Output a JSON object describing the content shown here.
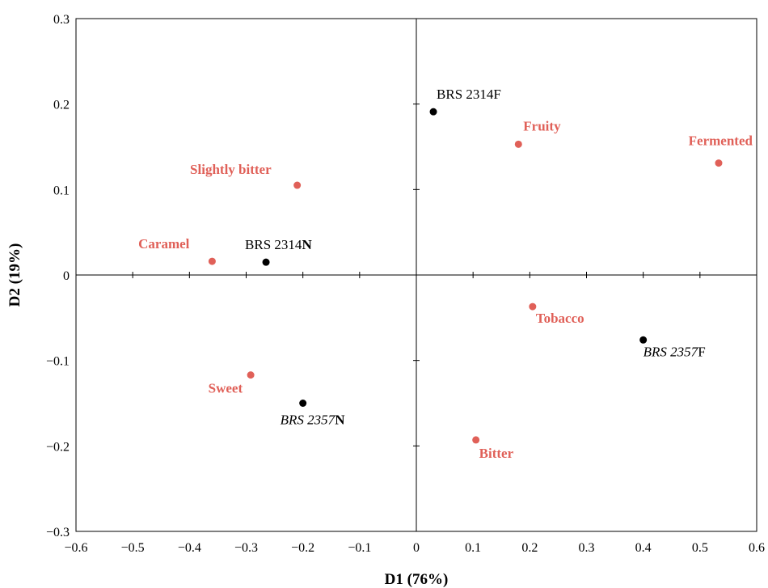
{
  "chart_data": {
    "type": "scatter",
    "xlabel": "D1 (76%)",
    "ylabel": "D2 (19%)",
    "xlim": [
      -0.6,
      0.6
    ],
    "ylim": [
      -0.3,
      0.3
    ],
    "x_ticks": [
      "−0.6",
      "−0.5",
      "−0.4",
      "−0.3",
      "−0.2",
      "−0.1",
      "0",
      "0.1",
      "0.2",
      "0.3",
      "0.4",
      "0.5",
      "0.6"
    ],
    "y_ticks": [
      "0.3",
      "0.2",
      "0.1",
      "0",
      "−0.1",
      "−0.2",
      "−0.3"
    ],
    "grid": false,
    "colors": {
      "attribute": "#e06058",
      "sample": "#000000"
    },
    "series": [
      {
        "points": [
          {
            "label": "Slightly bitter",
            "x": -0.21,
            "y": 0.105
          },
          {
            "label": "Caramel",
            "x": -0.36,
            "y": 0.016
          },
          {
            "label": "Fruity",
            "x": 0.18,
            "y": 0.153
          },
          {
            "label": "Fermented",
            "x": 0.533,
            "y": 0.131
          },
          {
            "label": "Tobacco",
            "x": 0.205,
            "y": -0.037
          },
          {
            "label": "Sweet",
            "x": -0.292,
            "y": -0.117
          },
          {
            "label": "Bitter",
            "x": 0.105,
            "y": -0.193
          }
        ]
      },
      {
        "points": [
          {
            "label_parts": [
              {
                "text": "BRS 2314F"
              }
            ],
            "x": 0.03,
            "y": 0.191
          },
          {
            "label_parts": [
              {
                "text": "BRS 2314"
              },
              {
                "text": "N",
                "bold": true
              }
            ],
            "x": -0.265,
            "y": 0.015
          },
          {
            "label_parts": [
              {
                "text": "BRS 2357",
                "italic": true
              },
              {
                "text": "F"
              }
            ],
            "x": 0.4,
            "y": -0.076
          },
          {
            "label_parts": [
              {
                "text": "BRS 2357",
                "italic": true
              },
              {
                "text": "N",
                "bold": true
              }
            ],
            "x": -0.2,
            "y": -0.15
          }
        ]
      }
    ]
  }
}
